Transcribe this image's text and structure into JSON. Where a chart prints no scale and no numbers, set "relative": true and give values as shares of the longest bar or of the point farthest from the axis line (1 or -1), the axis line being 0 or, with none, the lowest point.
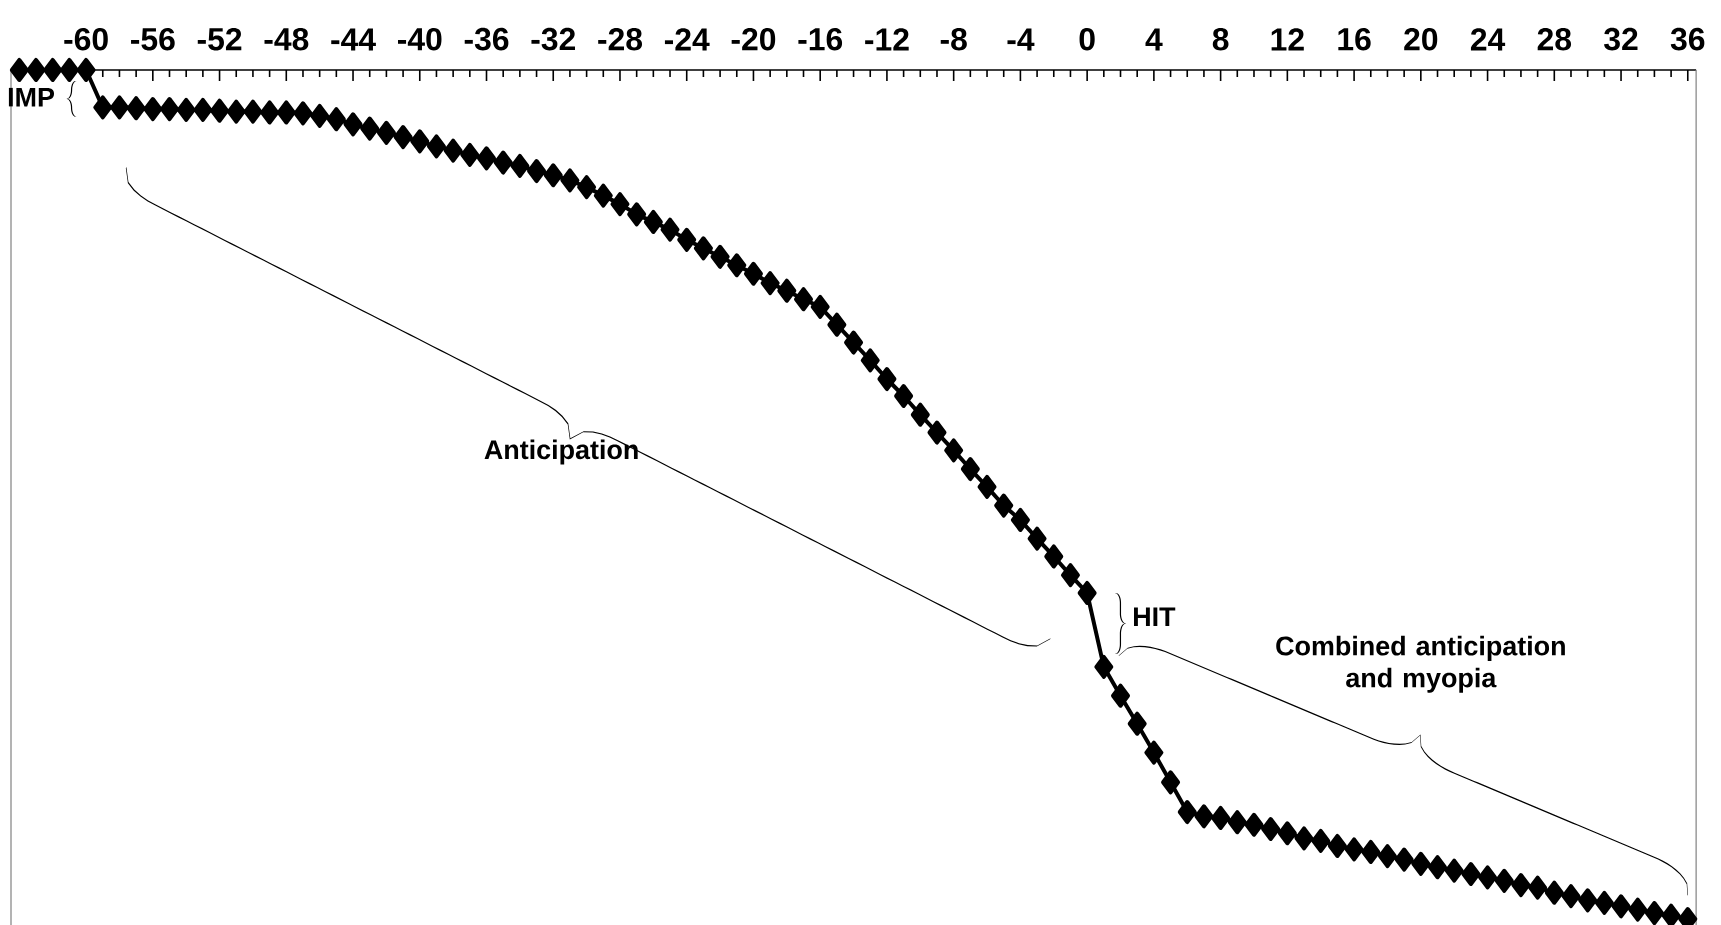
{
  "chart_data": {
    "type": "line",
    "relative": true,
    "color": "#000000",
    "marker": "diamond",
    "line_style": "solid",
    "x": [
      -64,
      -63,
      -62,
      -61,
      -60,
      -59,
      -58,
      -57,
      -56,
      -55,
      -54,
      -53,
      -52,
      -51,
      -50,
      -49,
      -48,
      -47,
      -46,
      -45,
      -44,
      -43,
      -42,
      -41,
      -40,
      -39,
      -38,
      -37,
      -36,
      -35,
      -34,
      -33,
      -32,
      -31,
      -30,
      -29,
      -28,
      -27,
      -26,
      -25,
      -24,
      -23,
      -22,
      -21,
      -20,
      -19,
      -18,
      -17,
      -16,
      -15,
      -14,
      -13,
      -12,
      -11,
      -10,
      -9,
      -8,
      -7,
      -6,
      -5,
      -4,
      -3,
      -2,
      -1,
      0,
      1,
      2,
      3,
      4,
      5,
      6,
      7,
      8,
      9,
      10,
      11,
      12,
      13,
      14,
      15,
      16,
      17,
      18,
      19,
      20,
      21,
      22,
      23,
      24,
      25,
      26,
      27,
      28,
      29,
      30,
      31,
      32,
      33,
      34,
      35,
      36
    ],
    "values": [
      1.0,
      1.0,
      1.0,
      1.0,
      1.0,
      0.956,
      0.956,
      0.955,
      0.954,
      0.954,
      0.953,
      0.953,
      0.952,
      0.951,
      0.951,
      0.95,
      0.95,
      0.949,
      0.946,
      0.942,
      0.936,
      0.931,
      0.926,
      0.921,
      0.916,
      0.91,
      0.905,
      0.9,
      0.896,
      0.891,
      0.887,
      0.881,
      0.876,
      0.87,
      0.862,
      0.852,
      0.842,
      0.83,
      0.821,
      0.812,
      0.8,
      0.79,
      0.78,
      0.77,
      0.76,
      0.749,
      0.74,
      0.73,
      0.721,
      0.7,
      0.679,
      0.658,
      0.636,
      0.616,
      0.594,
      0.573,
      0.552,
      0.53,
      0.509,
      0.487,
      0.47,
      0.448,
      0.427,
      0.405,
      0.384,
      0.297,
      0.263,
      0.23,
      0.196,
      0.161,
      0.126,
      0.121,
      0.119,
      0.114,
      0.111,
      0.106,
      0.101,
      0.095,
      0.092,
      0.086,
      0.082,
      0.079,
      0.074,
      0.07,
      0.065,
      0.061,
      0.057,
      0.053,
      0.049,
      0.045,
      0.04,
      0.037,
      0.031,
      0.027,
      0.022,
      0.019,
      0.015,
      0.011,
      0.007,
      0.004,
      0.0
    ],
    "xlim": [
      -64.5,
      36.5
    ],
    "xticks": [
      -60,
      -56,
      -52,
      -48,
      -44,
      -40,
      -36,
      -32,
      -28,
      -24,
      -20,
      -16,
      -12,
      -8,
      -4,
      0,
      4,
      8,
      12,
      16,
      20,
      24,
      28,
      32,
      36
    ],
    "annotations": [
      "IMP",
      "Anticipation",
      "HIT",
      "Combined anticipation and myopia"
    ]
  }
}
